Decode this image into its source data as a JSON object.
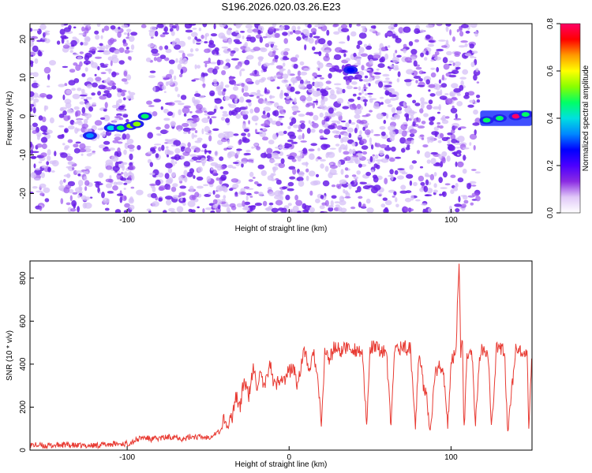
{
  "title": "S196.2026.020.03.26.E23",
  "chart_data": [
    {
      "type": "heatmap",
      "xlabel": "Height of straight line (km)",
      "ylabel": "Frequency (Hz)",
      "xlim": [
        -160,
        150
      ],
      "ylim": [
        -25,
        24
      ],
      "xticks": [
        -100,
        0,
        100
      ],
      "yticks": [
        -20,
        -10,
        0,
        10,
        20
      ],
      "colorbar": {
        "label": "Normalized spectral amplitude",
        "range": [
          0.0,
          0.8
        ],
        "ticks": [
          0.0,
          0.2,
          0.4,
          0.6,
          0.8
        ],
        "colors": [
          "#ffffff",
          "#e0c8f8",
          "#8a2be2",
          "#4b00ff",
          "#0000ff",
          "#0088ff",
          "#00e0e0",
          "#00ff66",
          "#88ff00",
          "#ffff00",
          "#ff9900",
          "#ff0000",
          "#ff0066"
        ]
      },
      "noise_region_km": [
        -160,
        118
      ],
      "gaps_km": [
        [
          -97,
          -87
        ],
        [
          -148,
          -141
        ],
        [
          117,
          150
        ]
      ],
      "hotspots": [
        {
          "x": -123,
          "y": -5,
          "amp": 0.35
        },
        {
          "x": -110,
          "y": -3,
          "amp": 0.4
        },
        {
          "x": -104,
          "y": -3,
          "amp": 0.45
        },
        {
          "x": -98,
          "y": -2.5,
          "amp": 0.5
        },
        {
          "x": -94,
          "y": -2,
          "amp": 0.55
        },
        {
          "x": -89,
          "y": 0,
          "amp": 0.45
        },
        {
          "x": 38,
          "y": 12,
          "amp": 0.3
        },
        {
          "x": 122,
          "y": -1,
          "amp": 0.45
        },
        {
          "x": 130,
          "y": -0.5,
          "amp": 0.45
        },
        {
          "x": 140,
          "y": 0,
          "amp": 0.8
        },
        {
          "x": 146,
          "y": 0.5,
          "amp": 0.45
        }
      ]
    },
    {
      "type": "line",
      "xlabel": "Height of straight line (km)",
      "ylabel": "SNR (10 * v/v)",
      "xlim": [
        -160,
        150
      ],
      "ylim": [
        0,
        880
      ],
      "xticks": [
        -100,
        0,
        100
      ],
      "yticks": [
        0,
        200,
        400,
        600,
        800
      ],
      "color": "#e83a32",
      "series": [
        {
          "name": "SNR",
          "x": [
            -160,
            -150,
            -140,
            -130,
            -120,
            -110,
            -100,
            -95,
            -90,
            -85,
            -80,
            -75,
            -70,
            -65,
            -60,
            -55,
            -50,
            -45,
            -42,
            -40,
            -38,
            -35,
            -33,
            -30,
            -28,
            -25,
            -22,
            -20,
            -18,
            -15,
            -12,
            -10,
            -8,
            -5,
            -3,
            0,
            3,
            5,
            8,
            10,
            13,
            15,
            18,
            20,
            22,
            25,
            28,
            30,
            33,
            35,
            40,
            45,
            48,
            50,
            55,
            60,
            63,
            65,
            70,
            75,
            78,
            80,
            83,
            85,
            87,
            90,
            93,
            95,
            98,
            100,
            103,
            104,
            105,
            106,
            107,
            108,
            110,
            113,
            115,
            118,
            120,
            123,
            125,
            128,
            130,
            133,
            135,
            140,
            145,
            147,
            148,
            150
          ],
          "y": [
            25,
            20,
            25,
            20,
            22,
            28,
            30,
            45,
            60,
            50,
            55,
            60,
            65,
            50,
            65,
            60,
            60,
            80,
            90,
            150,
            100,
            160,
            260,
            200,
            330,
            250,
            380,
            300,
            350,
            280,
            420,
            320,
            300,
            350,
            320,
            370,
            380,
            300,
            420,
            460,
            350,
            470,
            300,
            100,
            460,
            420,
            480,
            470,
            460,
            480,
            470,
            460,
            100,
            480,
            470,
            460,
            100,
            470,
            480,
            470,
            100,
            460,
            300,
            270,
            70,
            350,
            400,
            380,
            100,
            420,
            450,
            700,
            900,
            450,
            500,
            100,
            460,
            450,
            100,
            460,
            470,
            460,
            100,
            470,
            470,
            460,
            90,
            470,
            440,
            430,
            90,
            470
          ]
        }
      ]
    }
  ]
}
